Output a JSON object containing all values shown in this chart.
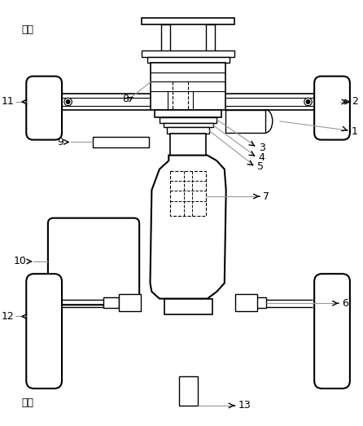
{
  "bg_color": "#ffffff",
  "line_color": "#000000",
  "gray_color": "#999999",
  "front_label": "前方",
  "back_label": "后方",
  "figsize": [
    4.46,
    5.23
  ],
  "dpi": 100
}
